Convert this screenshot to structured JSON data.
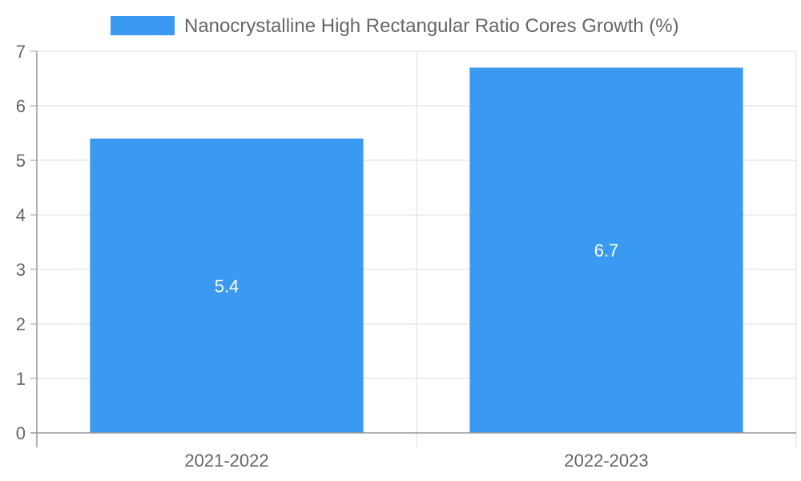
{
  "chart_data": {
    "type": "bar",
    "categories": [
      "2021-2022",
      "2022-2023"
    ],
    "series": [
      {
        "name": "Nanocrystalline High Rectangular Ratio Cores Growth (%)",
        "values": [
          5.4,
          6.7
        ],
        "color": "#3a9af1"
      }
    ],
    "value_labels": [
      "5.4",
      "6.7"
    ],
    "ylim": [
      0,
      7
    ],
    "y_ticks": [
      "0",
      "1",
      "2",
      "3",
      "4",
      "5",
      "6",
      "7"
    ],
    "xlabel": "",
    "ylabel": "",
    "grid": true,
    "legend_position": "top",
    "colors": {
      "bar": "#3a9af1",
      "grid": "#dddddd",
      "axis": "#999999",
      "text": "#666666",
      "bar_label": "#ffffff"
    }
  }
}
